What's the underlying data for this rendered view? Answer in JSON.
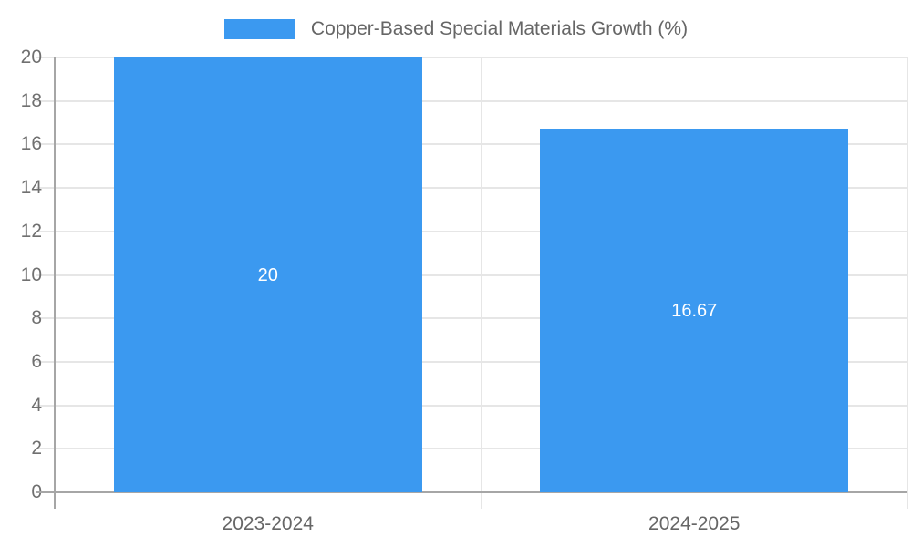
{
  "chart_data": {
    "type": "bar",
    "title": "",
    "xlabel": "",
    "ylabel": "",
    "categories": [
      "2023-2024",
      "2024-2025"
    ],
    "values": [
      20,
      16.67
    ],
    "value_labels": [
      "20",
      "16.67"
    ],
    "ylim": [
      0,
      20
    ],
    "ytick_step": 2,
    "yticks": [
      0,
      2,
      4,
      6,
      8,
      10,
      12,
      14,
      16,
      18,
      20
    ],
    "grid": true,
    "legend": {
      "position": "top",
      "entries": [
        {
          "label": "Copper-Based Special Materials Growth (%)",
          "color_key": "bar"
        }
      ]
    }
  },
  "colors": {
    "bar": "#3B99F0",
    "grid": "#E6E6E6",
    "axis": "#A6A6A6",
    "tick_label": "#707070",
    "category_label": "#666666",
    "legend_text": "#666666",
    "data_label": "#FFFFFF",
    "background": "#FFFFFF"
  }
}
